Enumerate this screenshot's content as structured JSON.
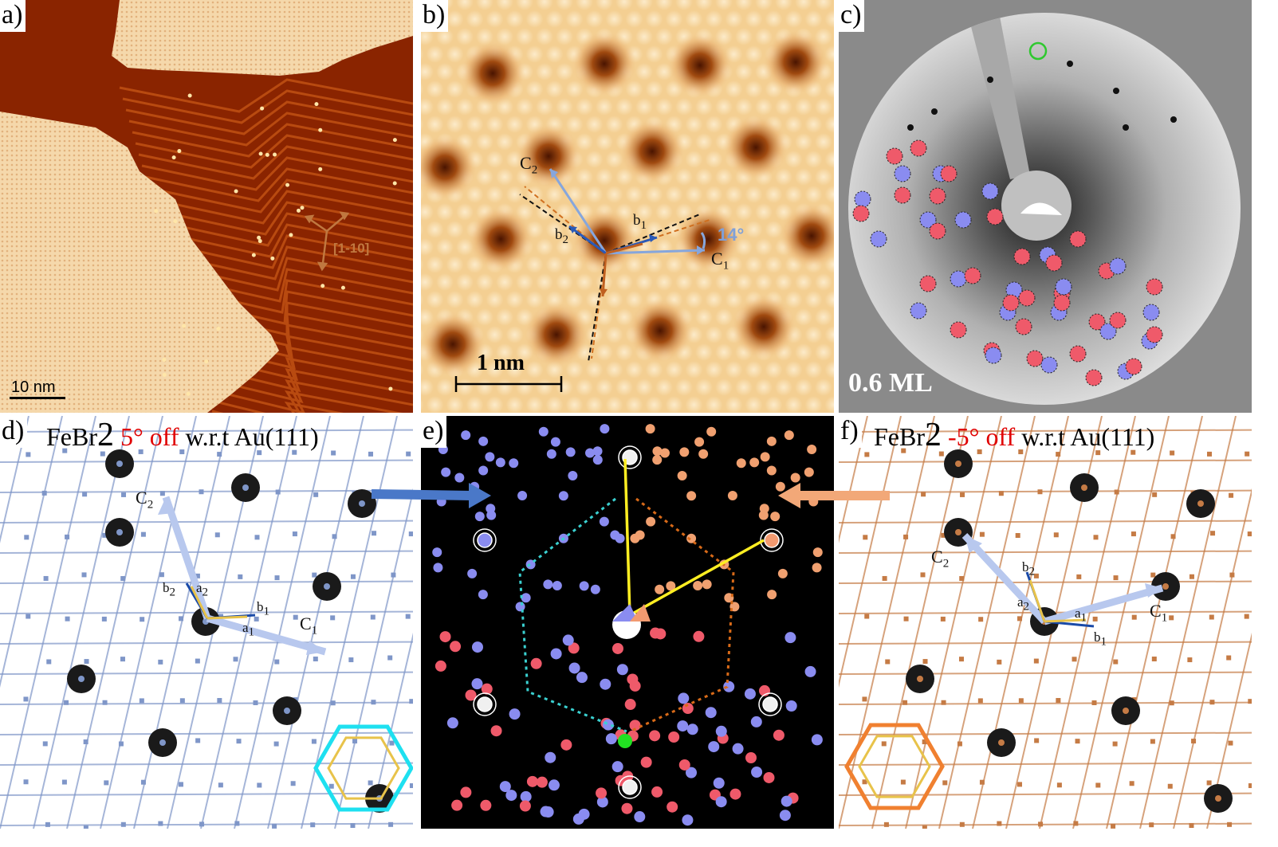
{
  "panels": {
    "a": {
      "label": "a)",
      "scale_bar": "10 nm",
      "direction": "[1-10]"
    },
    "b": {
      "label": "b)",
      "scale_bar": "1 nm",
      "angle": "14°",
      "vectors": {
        "c2": "C",
        "c2_sub": "2",
        "b2": "b",
        "b2_sub": "2",
        "b1": "b",
        "b1_sub": "1",
        "c1": "C",
        "c1_sub": "1"
      }
    },
    "c": {
      "label": "c)",
      "coverage": "0.6 ML"
    },
    "d": {
      "label": "d)",
      "title_prefix": "FeBr",
      "title_sub": "2",
      "title_angle": "5° off",
      "title_suffix": "w.r.t Au(111)",
      "vectors": {
        "c2": "C",
        "c2_sub": "2",
        "b2": "b",
        "b2_sub": "2",
        "a2": "a",
        "a2_sub": "2",
        "b1": "b",
        "b1_sub": "1",
        "a1": "a",
        "a1_sub": "1",
        "c1": "C",
        "c1_sub": "1"
      }
    },
    "e": {
      "label": "e)"
    },
    "f": {
      "label": "f)",
      "title_prefix": "FeBr",
      "title_sub": "2",
      "title_angle": "-5° off",
      "title_suffix": "w.r.t Au(111)",
      "vectors": {
        "c2": "C",
        "c2_sub": "2",
        "b2": "b",
        "b2_sub": "2",
        "a2": "a",
        "a2_sub": "2",
        "a1": "a",
        "a1_sub": "1",
        "b1": "b",
        "b1_sub": "1",
        "c1": "C",
        "c1_sub": "1"
      }
    }
  },
  "colors": {
    "stm_dark": "#7a1c00",
    "stm_light": "#f3d3a2",
    "leed_red": "#ef5a6a",
    "leed_blue": "#8a8cf0",
    "model_blue": "#7f96c8",
    "model_orange": "#c57b45",
    "hex_cyan": "#1ee0f0",
    "hex_yellow": "#e8c34a",
    "hex_orange": "#f08030"
  }
}
